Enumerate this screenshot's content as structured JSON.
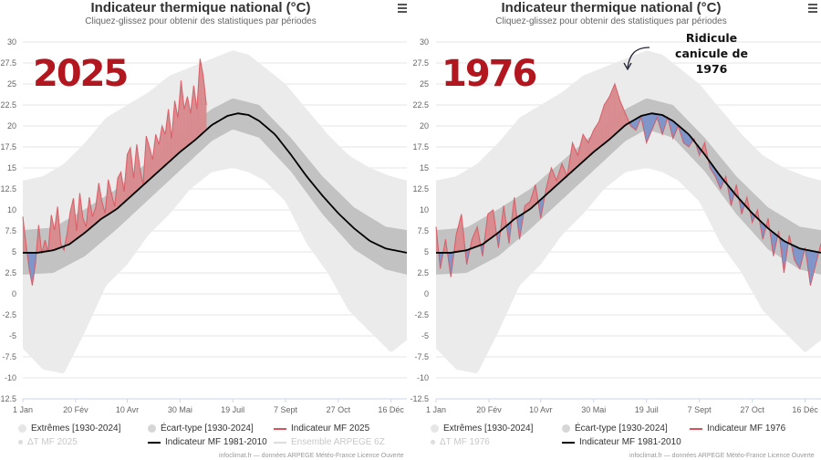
{
  "panels": [
    {
      "title": "Indicateur thermique national (°C)",
      "subtitle": "Cliquez-glissez pour obtenir des statistiques par périodes",
      "big_year": "2025",
      "legend": {
        "extremes": "Extrêmes [1930-2024]",
        "ecart": "Écart-type [1930-2024]",
        "indicator": "Indicateur MF 2025",
        "delta": "ΔT MF 2025",
        "normal": "Indicateur MF 1981-2010",
        "ensemble": "Ensemble ARPEGE 6Z"
      },
      "credits": "infoclimat.fr — données ARPEGE Météo-France Licence Ouverte"
    },
    {
      "title": "Indicateur thermique national (°C)",
      "subtitle": "Cliquez-glissez pour obtenir des statistiques par périodes",
      "big_year": "1976",
      "annotation": "Ridicule canicule de 1976",
      "legend": {
        "extremes": "Extrêmes [1930-2024]",
        "ecart": "Écart-type [1930-2024]",
        "indicator": "Indicateur MF 1976",
        "delta": "ΔT MF 1976",
        "normal": "Indicateur MF 1981-2010"
      },
      "credits": "infoclimat.fr — données ARPEGE Météo-France Licence Ouverte"
    }
  ],
  "colors": {
    "extremes": "#ebebeb",
    "ecart": "#c2c2c2",
    "above": "#d98c8f",
    "above_line": "#d9535c",
    "below": "#7f96c9",
    "below_line": "#9b6f9e",
    "normal": "#000000",
    "year_text": "#b2161e"
  },
  "chart_data": [
    {
      "type": "area",
      "title": "Indicateur thermique national (°C)",
      "subtitle": "Cliquez-glissez pour obtenir des statistiques par périodes",
      "ylim": [
        -12.5,
        30
      ],
      "y_ticks": [
        "30",
        "27.5",
        "25",
        "22.5",
        "20",
        "17.5",
        "15",
        "12.5",
        "10",
        "7.5",
        "5",
        "2.5",
        "0",
        "-2.5",
        "-5",
        "-7.5",
        "-10",
        "-12.5"
      ],
      "x_ticks": [
        "1 Jan",
        "20 Fév",
        "10 Avr",
        "30 Mai",
        "19 Juil",
        "7 Sept",
        "27 Oct",
        "16 Déc"
      ],
      "x_tick_days": [
        1,
        51,
        100,
        150,
        200,
        250,
        300,
        350
      ],
      "grid": true,
      "normal": {
        "name": "Indicateur MF 1981-2010",
        "days": [
          1,
          15,
          30,
          45,
          60,
          75,
          90,
          105,
          120,
          135,
          150,
          165,
          180,
          195,
          205,
          215,
          225,
          240,
          255,
          270,
          285,
          300,
          315,
          330,
          345,
          365
        ],
        "values": [
          4.9,
          4.9,
          5.2,
          5.9,
          7.3,
          8.9,
          10.1,
          11.8,
          13.5,
          15.2,
          16.9,
          18.4,
          20.1,
          21.2,
          21.5,
          21.3,
          20.6,
          19.0,
          16.6,
          14.0,
          11.7,
          9.6,
          7.8,
          6.3,
          5.4,
          4.9
        ]
      },
      "ecart": {
        "name": "Écart-type [1930-2024]",
        "days": [
          1,
          30,
          60,
          90,
          120,
          150,
          180,
          200,
          225,
          255,
          285,
          315,
          345,
          365
        ],
        "low": [
          2.3,
          2.5,
          4.5,
          7.7,
          11.2,
          14.7,
          18.2,
          19.6,
          18.6,
          14.6,
          9.5,
          5.3,
          2.9,
          2.3
        ],
        "high": [
          7.6,
          7.9,
          10.1,
          12.5,
          15.8,
          19.1,
          22.0,
          23.3,
          22.5,
          18.6,
          14.0,
          10.3,
          8.0,
          7.6
        ]
      },
      "extremes": {
        "name": "Extrêmes [1930-2024]",
        "days": [
          1,
          20,
          40,
          60,
          80,
          100,
          120,
          140,
          160,
          180,
          200,
          215,
          230,
          250,
          270,
          290,
          310,
          330,
          350,
          365
        ],
        "low": [
          -6.5,
          -9.0,
          -9.5,
          -4.5,
          1.0,
          3.5,
          7.0,
          9.5,
          12.5,
          14.5,
          15.0,
          14.5,
          13.5,
          11.0,
          6.0,
          2.5,
          -2.0,
          -4.5,
          -7.0,
          -5.5
        ],
        "high": [
          13.5,
          14.0,
          15.5,
          18.0,
          21.0,
          22.5,
          24.0,
          26.0,
          27.0,
          28.0,
          29.0,
          28.5,
          27.0,
          25.0,
          22.0,
          19.0,
          16.5,
          15.0,
          14.0,
          13.5
        ]
      },
      "indicator": {
        "name": "Indicateur MF 2025",
        "days": [
          1,
          4,
          7,
          10,
          13,
          16,
          19,
          22,
          25,
          28,
          31,
          34,
          37,
          40,
          43,
          46,
          49,
          52,
          55,
          58,
          61,
          64,
          67,
          70,
          73,
          76,
          79,
          82,
          85,
          88,
          91,
          94,
          97,
          100,
          103,
          106,
          109,
          112,
          115,
          118,
          121,
          124,
          127,
          130,
          133,
          136,
          139,
          142,
          145,
          148,
          151,
          154,
          157,
          160,
          163,
          166,
          169,
          172,
          175
        ],
        "values": [
          9.2,
          6.0,
          3.0,
          1.0,
          3.6,
          8.2,
          4.8,
          6.4,
          5.0,
          9.4,
          7.6,
          10.4,
          6.0,
          5.2,
          7.2,
          9.8,
          11.4,
          7.5,
          12.0,
          9.0,
          8.0,
          11.5,
          9.2,
          10.3,
          13.2,
          11.0,
          9.6,
          13.6,
          12.0,
          10.4,
          13.8,
          14.5,
          12.2,
          16.6,
          17.4,
          13.8,
          17.8,
          15.0,
          13.0,
          18.8,
          17.5,
          16.0,
          19.0,
          17.8,
          20.0,
          19.0,
          22.0,
          18.5,
          23.0,
          21.0,
          25.4,
          22.0,
          23.5,
          21.5,
          24.8,
          22.0,
          28.0,
          26.0,
          22.5
        ]
      }
    },
    {
      "type": "area",
      "title": "Indicateur thermique national (°C)",
      "subtitle": "Cliquez-glissez pour obtenir des statistiques par périodes",
      "ylim": [
        -12.5,
        30
      ],
      "y_ticks": [
        "30",
        "27.5",
        "25",
        "22.5",
        "20",
        "17.5",
        "15",
        "12.5",
        "10",
        "7.5",
        "5",
        "2.5",
        "0",
        "-2.5",
        "-5",
        "-7.5",
        "-10",
        "-12.5"
      ],
      "x_ticks": [
        "1 Jan",
        "20 Fév",
        "10 Avr",
        "30 Mai",
        "19 Juil",
        "7 Sept",
        "27 Oct",
        "16 Déc"
      ],
      "x_tick_days": [
        1,
        51,
        100,
        150,
        200,
        250,
        300,
        350
      ],
      "grid": true,
      "normal": {
        "name": "Indicateur MF 1981-2010",
        "days": [
          1,
          15,
          30,
          45,
          60,
          75,
          90,
          105,
          120,
          135,
          150,
          165,
          180,
          195,
          205,
          215,
          225,
          240,
          255,
          270,
          285,
          300,
          315,
          330,
          345,
          365
        ],
        "values": [
          4.9,
          4.9,
          5.2,
          5.9,
          7.3,
          8.9,
          10.1,
          11.8,
          13.5,
          15.2,
          16.9,
          18.4,
          20.1,
          21.2,
          21.5,
          21.3,
          20.6,
          19.0,
          16.6,
          14.0,
          11.7,
          9.6,
          7.8,
          6.3,
          5.4,
          4.9
        ]
      },
      "ecart": {
        "name": "Écart-type [1930-2024]",
        "days": [
          1,
          30,
          60,
          90,
          120,
          150,
          180,
          200,
          225,
          255,
          285,
          315,
          345,
          365
        ],
        "low": [
          2.3,
          2.5,
          4.5,
          7.7,
          11.2,
          14.7,
          18.2,
          19.6,
          18.6,
          14.6,
          9.5,
          5.3,
          2.9,
          2.3
        ],
        "high": [
          7.6,
          7.9,
          10.1,
          12.5,
          15.8,
          19.1,
          22.0,
          23.3,
          22.5,
          18.6,
          14.0,
          10.3,
          8.0,
          7.6
        ]
      },
      "extremes": {
        "name": "Extrêmes [1930-2024]",
        "days": [
          1,
          20,
          40,
          60,
          80,
          100,
          120,
          140,
          160,
          180,
          200,
          215,
          230,
          250,
          270,
          290,
          310,
          330,
          350,
          365
        ],
        "low": [
          -6.5,
          -9.0,
          -9.5,
          -4.5,
          1.0,
          3.5,
          7.0,
          9.5,
          12.5,
          14.5,
          15.0,
          14.5,
          13.5,
          11.0,
          6.0,
          2.5,
          -2.0,
          -4.5,
          -7.0,
          -5.5
        ],
        "high": [
          13.5,
          14.0,
          15.5,
          18.0,
          21.0,
          22.5,
          24.0,
          26.0,
          27.0,
          28.0,
          29.0,
          28.5,
          27.0,
          25.0,
          22.0,
          19.0,
          16.5,
          15.0,
          14.0,
          13.5
        ]
      },
      "indicator": {
        "name": "Indicateur MF 1976",
        "days": [
          1,
          5,
          10,
          15,
          20,
          25,
          30,
          35,
          40,
          45,
          50,
          55,
          60,
          65,
          70,
          75,
          80,
          85,
          90,
          95,
          100,
          105,
          110,
          115,
          120,
          125,
          130,
          135,
          140,
          145,
          150,
          155,
          160,
          165,
          170,
          175,
          180,
          185,
          190,
          195,
          200,
          205,
          210,
          215,
          220,
          225,
          230,
          235,
          240,
          245,
          250,
          255,
          260,
          265,
          270,
          275,
          280,
          285,
          290,
          295,
          300,
          305,
          310,
          315,
          320,
          325,
          330,
          335,
          340,
          345,
          350,
          355,
          360,
          365
        ],
        "values": [
          8.0,
          3.0,
          6.5,
          2.0,
          7.0,
          9.5,
          3.5,
          6.5,
          8.0,
          4.5,
          9.5,
          10.0,
          5.5,
          10.5,
          6.0,
          11.5,
          6.5,
          10.5,
          11.0,
          13.0,
          9.0,
          12.5,
          15.0,
          13.5,
          15.5,
          14.0,
          18.0,
          16.5,
          19.0,
          18.0,
          19.5,
          20.5,
          22.5,
          23.5,
          25.0,
          23.0,
          21.5,
          20.0,
          19.5,
          21.0,
          18.0,
          19.5,
          21.0,
          19.0,
          21.0,
          18.5,
          20.0,
          18.0,
          17.5,
          18.5,
          16.5,
          18.0,
          15.0,
          14.0,
          12.5,
          14.0,
          10.5,
          13.0,
          9.5,
          11.5,
          8.5,
          10.0,
          6.5,
          9.0,
          4.5,
          7.5,
          2.5,
          7.0,
          4.0,
          3.0,
          5.5,
          1.0,
          3.5,
          6.0
        ]
      }
    }
  ]
}
